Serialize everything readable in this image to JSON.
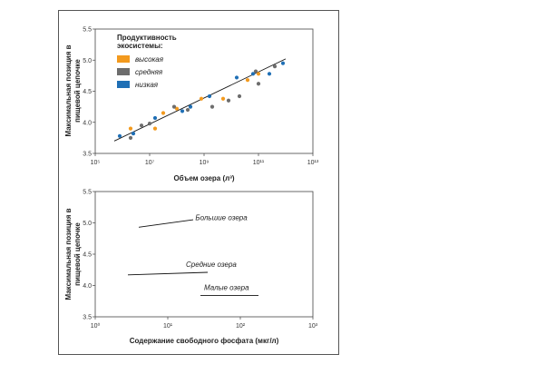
{
  "chart_data": [
    {
      "type": "scatter",
      "title": "",
      "xlabel": "Объем озера (л³)",
      "ylabel": "Максимальная позиция в пищевой цепочке",
      "xscale": "log",
      "xlim_exp": [
        5,
        13
      ],
      "xticks": [
        {
          "exp": 5,
          "label": "10⁵"
        },
        {
          "exp": 7,
          "label": "10⁷"
        },
        {
          "exp": 9,
          "label": "10⁹"
        },
        {
          "exp": 11,
          "label": "10¹¹"
        },
        {
          "exp": 13,
          "label": "10¹³"
        }
      ],
      "ylim": [
        3.5,
        5.5
      ],
      "yticks": [
        "3.5",
        "4.0",
        "4.5",
        "5.0",
        "5.5"
      ],
      "legend": {
        "title": "Продуктивность экосистемы:",
        "title_lines": [
          "Продуктивность",
          "экосистемы:"
        ],
        "placement": "top-left",
        "items": [
          {
            "name": "высокая",
            "color": "#f39a1e"
          },
          {
            "name": "средняя",
            "color": "#6d6d6d"
          },
          {
            "name": "низкая",
            "color": "#1f6fb5"
          }
        ]
      },
      "series": [
        {
          "name": "высокая",
          "color": "#f39a1e",
          "points": [
            [
              6.3,
              3.9
            ],
            [
              7.2,
              3.9
            ],
            [
              7.5,
              4.15
            ],
            [
              8.0,
              4.22
            ],
            [
              8.9,
              4.38
            ],
            [
              9.7,
              4.38
            ],
            [
              10.6,
              4.68
            ],
            [
              11.0,
              4.78
            ]
          ]
        },
        {
          "name": "средняя",
          "color": "#6d6d6d",
          "points": [
            [
              6.3,
              3.75
            ],
            [
              6.7,
              3.95
            ],
            [
              7.0,
              3.98
            ],
            [
              7.9,
              4.25
            ],
            [
              8.4,
              4.2
            ],
            [
              9.3,
              4.25
            ],
            [
              9.9,
              4.35
            ],
            [
              10.3,
              4.42
            ],
            [
              10.9,
              4.82
            ],
            [
              11.6,
              4.9
            ],
            [
              11.0,
              4.62
            ]
          ]
        },
        {
          "name": "низкая",
          "color": "#1f6fb5",
          "points": [
            [
              5.9,
              3.78
            ],
            [
              6.4,
              3.82
            ],
            [
              7.2,
              4.07
            ],
            [
              8.2,
              4.18
            ],
            [
              8.5,
              4.25
            ],
            [
              9.2,
              4.42
            ],
            [
              10.2,
              4.72
            ],
            [
              10.8,
              4.78
            ],
            [
              11.4,
              4.78
            ],
            [
              11.9,
              4.95
            ]
          ]
        }
      ],
      "fit_line": {
        "x": [
          5.7,
          12.0
        ],
        "y": [
          3.7,
          5.02
        ]
      }
    },
    {
      "type": "line",
      "title": "",
      "xlabel": "Содержание свободного фосфата (мкг/л)",
      "ylabel": "Максимальная позиция в пищевой цепочке",
      "xscale": "log",
      "xlim_exp": [
        0,
        3
      ],
      "xticks": [
        {
          "exp": 0,
          "label": "10⁰"
        },
        {
          "exp": 1,
          "label": "10¹"
        },
        {
          "exp": 2,
          "label": "10²"
        },
        {
          "exp": 3,
          "label": "10³"
        }
      ],
      "ylim": [
        3.5,
        5.5
      ],
      "yticks": [
        "3.5",
        "4.0",
        "4.5",
        "5.0",
        "5.5"
      ],
      "series": [
        {
          "name": "Большие озера",
          "x": [
            0.6,
            1.35
          ],
          "y": [
            4.93,
            5.05
          ],
          "label_at": [
            1.38,
            5.04
          ]
        },
        {
          "name": "Средние озера",
          "x": [
            0.45,
            1.55
          ],
          "y": [
            4.17,
            4.21
          ],
          "label_at": [
            1.25,
            4.3
          ]
        },
        {
          "name": "Малые озера",
          "x": [
            1.45,
            2.25
          ],
          "y": [
            3.84,
            3.84
          ],
          "label_at": [
            1.5,
            3.93
          ]
        }
      ]
    }
  ]
}
